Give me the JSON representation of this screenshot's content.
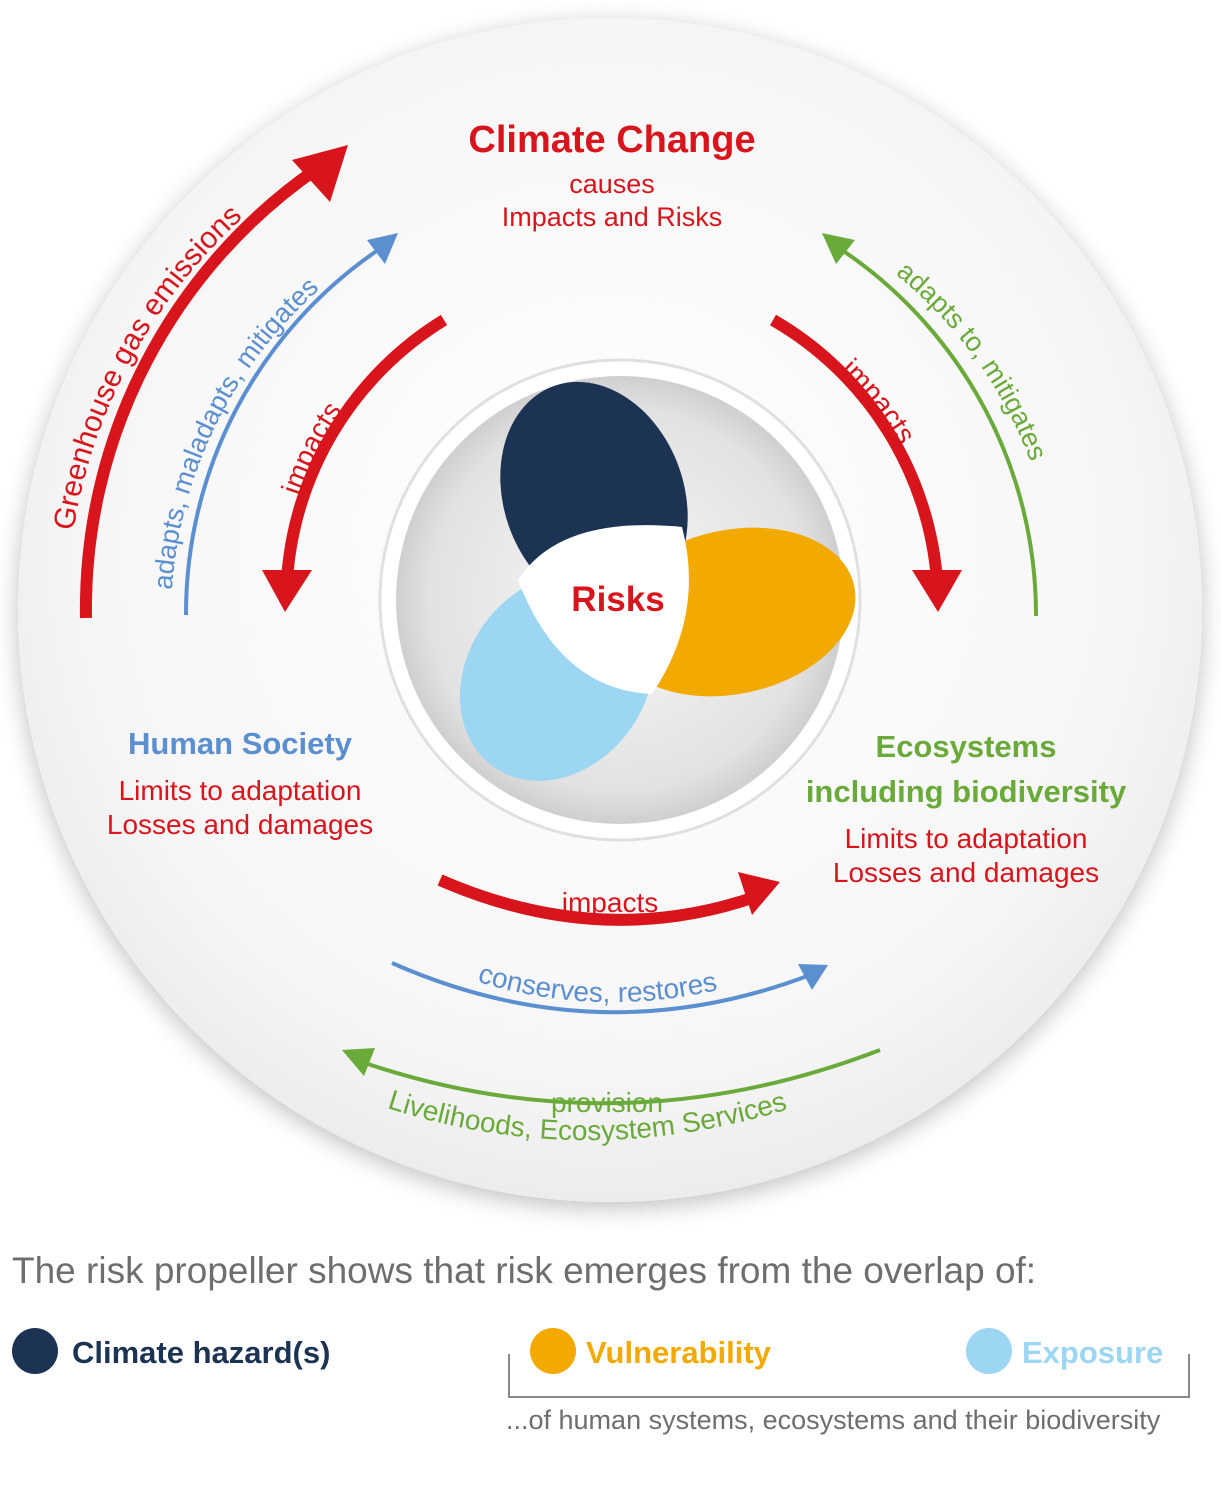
{
  "colors": {
    "red": "#d8151c",
    "blue": "#5b8fcf",
    "green": "#6aaa3a",
    "hazard": "#1c3354",
    "vulnerability": "#f2a900",
    "exposure": "#9dd6f2",
    "grey_text": "#6e6e6e"
  },
  "nodes": {
    "climate_change": {
      "title": "Climate Change",
      "line1": "causes",
      "line2": "Impacts and Risks"
    },
    "human_society": {
      "title": "Human Society",
      "line1": "Limits to adaptation",
      "line2": "Losses and damages"
    },
    "ecosystems": {
      "title_line1": "Ecosystems",
      "title_line2": "including biodiversity",
      "line1": "Limits to adaptation",
      "line2": "Losses and damages"
    },
    "center": {
      "label": "Risks"
    }
  },
  "arrows": {
    "greenhouse": "Greenhouse gas emissions",
    "adapts_maladapts": "adapts, maladapts, mitigates",
    "impacts_left": "impacts",
    "impacts_right": "impacts",
    "adapts_to": "adapts to, mitigates",
    "impacts_bottom": "impacts",
    "conserves": "conserves, restores",
    "provision": "provision",
    "livelihoods": "Livelihoods, Ecosystem Services"
  },
  "caption": "The risk propeller shows that risk emerges from the overlap of:",
  "legend": {
    "hazard": "Climate hazard(s)",
    "vulnerability": "Vulnerability",
    "exposure": "Exposure",
    "footnote": "...of human systems, ecosystems and their biodiversity"
  }
}
